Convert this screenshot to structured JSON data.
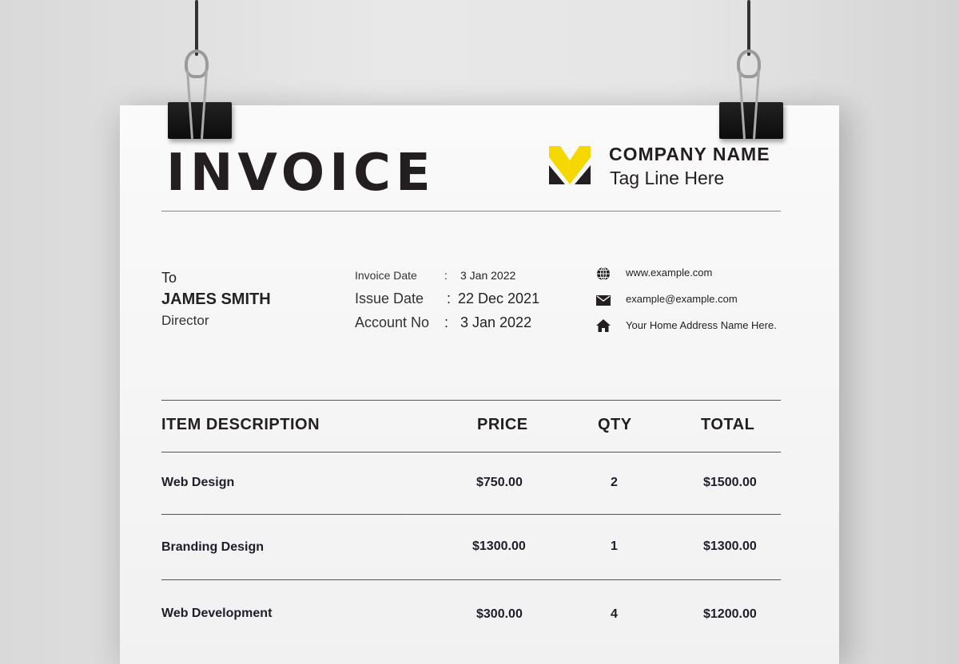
{
  "invoice": {
    "title": "INVOICE",
    "company": {
      "name": "COMPANY NAME",
      "tagline": "Tag Line Here",
      "logo_colors": {
        "primary": "#f5d800",
        "secondary": "#231f20"
      }
    },
    "recipient": {
      "to_label": "To",
      "name": "JAMES SMITH",
      "role": "Director"
    },
    "meta": [
      {
        "label": "Invoice Date",
        "sep": ":",
        "value": "3 Jan 2022"
      },
      {
        "label": "Issue Date",
        "sep": ":",
        "value": "22 Dec 2021"
      },
      {
        "label": "Account No",
        "sep": ":",
        "value": "3 Jan 2022"
      }
    ],
    "contact": [
      {
        "icon": "globe-icon",
        "text": "www.example.com"
      },
      {
        "icon": "mail-icon",
        "text": "example@example.com"
      },
      {
        "icon": "home-icon",
        "text": "Your Home Address Name Here."
      }
    ],
    "table": {
      "headers": [
        "ITEM DESCRIPTION",
        "PRICE",
        "QTY",
        "TOTAL"
      ],
      "rows": [
        [
          "Web Design",
          "$750.00",
          "2",
          "$1500.00"
        ],
        [
          "Branding Design",
          "$1300.00",
          "1",
          "$1300.00"
        ],
        [
          "Web Development",
          "$300.00",
          "4",
          "$1200.00"
        ]
      ]
    }
  }
}
